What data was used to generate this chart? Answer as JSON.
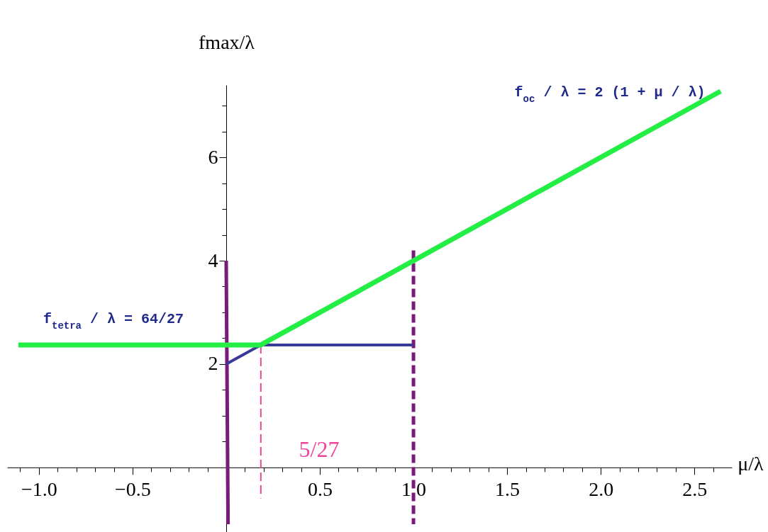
{
  "chart_data": {
    "type": "line",
    "xlabel": "μ/λ",
    "ylabel": "fmax/λ",
    "xlim": [
      -1.17,
      2.7
    ],
    "ylim": [
      -1.25,
      7.4
    ],
    "xticks": [
      {
        "value": -1.1,
        "label": null
      },
      {
        "value": -1,
        "label": "−1.0"
      },
      {
        "value": -0.9,
        "label": null
      },
      {
        "value": -0.8,
        "label": null
      },
      {
        "value": -0.7,
        "label": null
      },
      {
        "value": -0.6,
        "label": null
      },
      {
        "value": -0.5,
        "label": "−0.5"
      },
      {
        "value": -0.4,
        "label": null
      },
      {
        "value": -0.3,
        "label": null
      },
      {
        "value": -0.2,
        "label": null
      },
      {
        "value": -0.1,
        "label": null
      },
      {
        "value": 0.1,
        "label": null
      },
      {
        "value": 0.2,
        "label": null
      },
      {
        "value": 0.3,
        "label": null
      },
      {
        "value": 0.4,
        "label": null
      },
      0.5,
      {
        "value": 0.6,
        "label": null
      },
      {
        "value": 0.7,
        "label": null
      },
      {
        "value": 0.8,
        "label": null
      },
      {
        "value": 0.9,
        "label": null
      },
      {
        "value": 1,
        "label": "1.0"
      },
      {
        "value": 1.1,
        "label": null
      },
      {
        "value": 1.2,
        "label": null
      },
      {
        "value": 1.3,
        "label": null
      },
      {
        "value": 1.4,
        "label": null
      },
      1.5,
      {
        "value": 1.6,
        "label": null
      },
      {
        "value": 1.7,
        "label": null
      },
      {
        "value": 1.8,
        "label": null
      },
      {
        "value": 1.9,
        "label": null
      },
      {
        "value": 2,
        "label": "2.0"
      },
      {
        "value": 2.1,
        "label": null
      },
      {
        "value": 2.2,
        "label": null
      },
      {
        "value": 2.3,
        "label": null
      },
      {
        "value": 2.4,
        "label": null
      },
      2.5,
      {
        "value": 2.6,
        "label": null
      }
    ],
    "yticks": [
      {
        "value": 0.5,
        "label": null
      },
      {
        "value": 1,
        "label": null
      },
      {
        "value": 1.5,
        "label": null
      },
      2,
      {
        "value": 2.5,
        "label": null
      },
      {
        "value": 3,
        "label": null
      },
      {
        "value": 3.5,
        "label": null
      },
      4,
      {
        "value": 4.5,
        "label": null
      },
      {
        "value": 5,
        "label": null
      },
      {
        "value": 5.5,
        "label": null
      },
      6,
      {
        "value": 6.5,
        "label": null
      },
      {
        "value": 7,
        "label": null
      }
    ],
    "grid": false,
    "series": [
      {
        "color": "#7a1a7a",
        "line_style": "solid",
        "x": [
          0,
          0.01
        ],
        "values": [
          4.0,
          -1.1
        ]
      },
      {
        "color": "#7a1a7a",
        "line_style": "dashed",
        "x": [
          1,
          1
        ],
        "values": [
          4.2,
          -1.1
        ]
      },
      {
        "color": "#ee4499",
        "line_style": "dashed",
        "x": [
          0.185,
          0.185
        ],
        "values": [
          2.37,
          -0.6
        ]
      },
      {
        "color": "#3a3a99",
        "line_style": "solid",
        "x": [
          0,
          0.185,
          1
        ],
        "values": [
          2,
          2.37,
          2.37
        ]
      },
      {
        "color": "#22ee44",
        "line_style": "solid",
        "x": [
          -1.11,
          0.185,
          2.64
        ],
        "values": [
          2.37,
          2.37,
          7.28
        ]
      }
    ],
    "annotations": [
      "f$_{tetra}$ / λ = 64/27",
      "f$_{oc}$ / λ = 2 (1 + μ / λ)",
      "5/27"
    ]
  }
}
